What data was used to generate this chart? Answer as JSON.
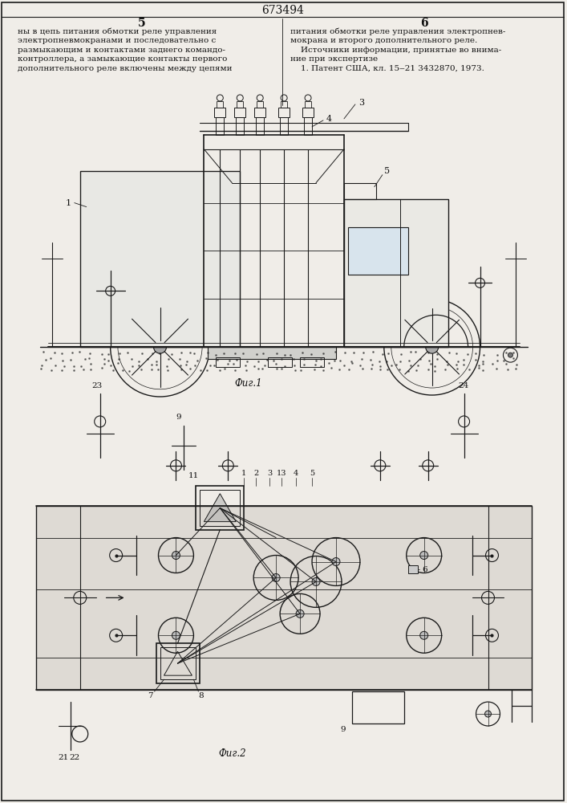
{
  "patent_number": "673494",
  "col_left": "5",
  "col_right": "6",
  "text_left": "ны в цепь питания обмотки реле управления\nэлектропневмокранами и последовательно с\nразмыкающим и контактами заднего командо-\nконтроллера, а замыкающие контакты первого\nдополнительного реле включены между цепями",
  "text_right": "питания обмотки реле управления электропнев-\nмокрана и второго дополнительного реле.\n    Источники информации, принятые во внима-\nние при экспертизе\n    1. Патент США, кл. 15‒21 3432870, 1973.",
  "bg_color": "#f0ede8",
  "line_color": "#1a1a1a",
  "text_color": "#111111"
}
